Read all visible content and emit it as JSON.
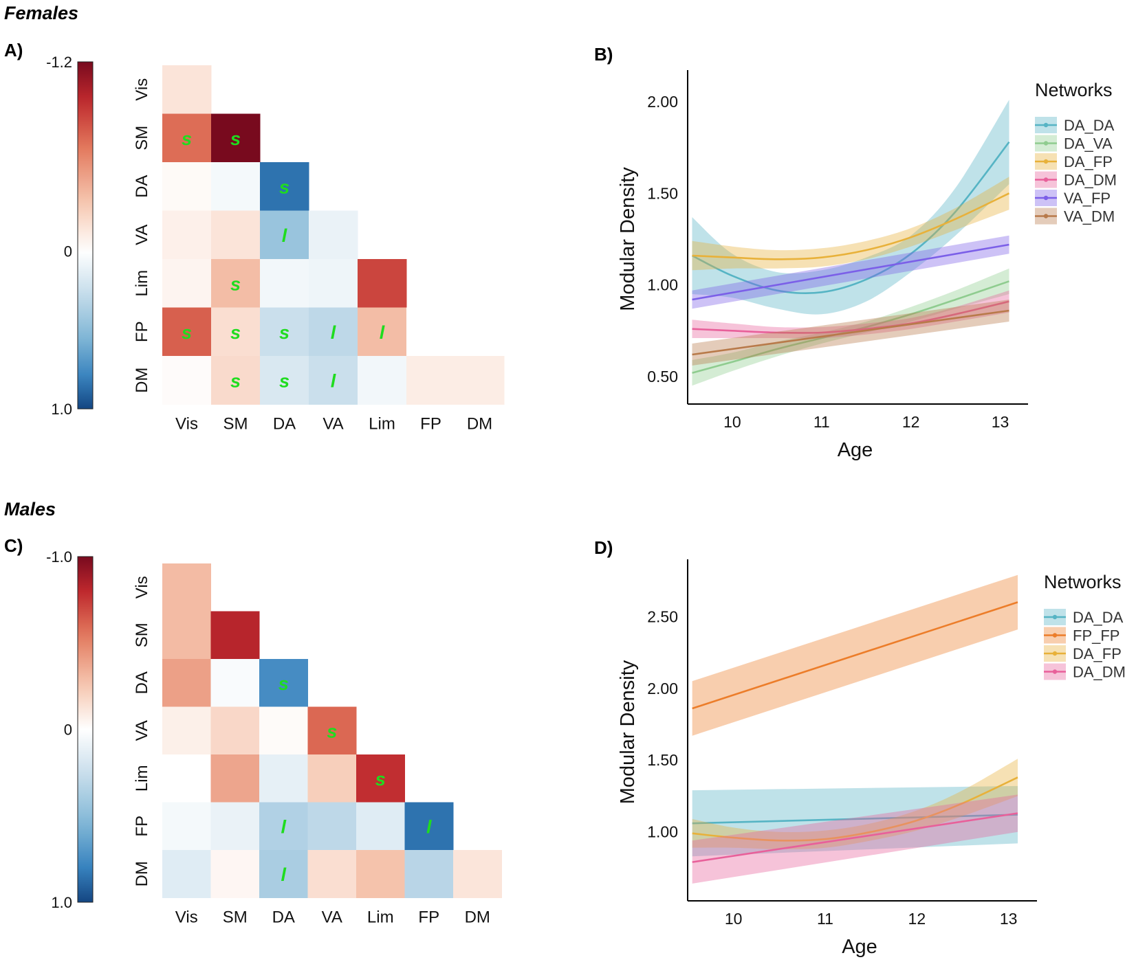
{
  "sections": {
    "females": "Females",
    "males": "Males"
  },
  "colors": {
    "DA_DA": "#56b4c4",
    "DA_VA": "#8fcc8f",
    "DA_FP": "#e8b13a",
    "DA_DM": "#e8609a",
    "VA_FP": "#7b5fe8",
    "VA_DM": "#b87a4a",
    "FP_FP": "#ec7d2a",
    "mark": "#1fdc1f"
  },
  "chart_data": [
    {
      "id": "A",
      "panel_label": "A)",
      "type": "heatmap",
      "rows": [
        "Vis",
        "SM",
        "DA",
        "VA",
        "Lim",
        "FP",
        "DM"
      ],
      "cols": [
        "Vis",
        "SM",
        "DA",
        "VA",
        "Lim",
        "FP",
        "DM"
      ],
      "colorbar": {
        "top_label": "-1.2",
        "mid_label": "0",
        "bottom_label": "1.0",
        "min": -1.2,
        "max": 1.0
      },
      "cells": [
        [
          -0.15
        ],
        [
          -0.7,
          -1.2
        ],
        [
          -0.03,
          0.05,
          0.85
        ],
        [
          -0.08,
          -0.15,
          0.45,
          0.1
        ],
        [
          -0.06,
          -0.35,
          0.06,
          0.08,
          -0.85
        ],
        [
          -0.75,
          -0.18,
          0.25,
          0.3,
          -0.35,
          0.0
        ],
        [
          -0.02,
          -0.2,
          0.18,
          0.25,
          0.06,
          -0.1,
          -0.1
        ]
      ],
      "marks": [
        [
          ""
        ],
        [
          "s",
          "s"
        ],
        [
          "",
          "",
          "s"
        ],
        [
          "",
          "",
          "l",
          ""
        ],
        [
          "",
          "s",
          "",
          "",
          ""
        ],
        [
          "s",
          "s",
          "s",
          "l",
          "l",
          "",
          ""
        ],
        [
          "",
          "s",
          "s",
          "l",
          "",
          "",
          ""
        ]
      ]
    },
    {
      "id": "B",
      "panel_label": "B)",
      "type": "line",
      "xlabel": "Age",
      "ylabel": "Modular Density",
      "xlim": [
        9.5,
        13.25
      ],
      "ylim": [
        0.35,
        2.15
      ],
      "xticks": [
        "10",
        "11",
        "12",
        "13"
      ],
      "yticks": [
        "0.50",
        "1.00",
        "1.50",
        "2.00"
      ],
      "legend_title": "Networks",
      "series": [
        {
          "name": "DA_DA",
          "x": [
            9.55,
            10,
            10.5,
            11,
            11.5,
            12,
            12.5,
            13.1
          ],
          "y": [
            1.16,
            1.05,
            0.97,
            0.96,
            1.03,
            1.17,
            1.4,
            1.78
          ],
          "band": [
            0.21,
            0.12,
            0.1,
            0.12,
            0.12,
            0.1,
            0.13,
            0.23
          ]
        },
        {
          "name": "DA_VA",
          "x": [
            9.55,
            10,
            10.5,
            11,
            11.5,
            12,
            12.5,
            13.1
          ],
          "y": [
            0.52,
            0.58,
            0.65,
            0.71,
            0.77,
            0.84,
            0.92,
            1.02
          ],
          "band": [
            0.07,
            0.05,
            0.04,
            0.03,
            0.03,
            0.04,
            0.05,
            0.07
          ]
        },
        {
          "name": "DA_FP",
          "x": [
            9.55,
            10,
            10.5,
            11,
            11.5,
            12,
            12.5,
            13.1
          ],
          "y": [
            1.16,
            1.15,
            1.14,
            1.15,
            1.19,
            1.26,
            1.36,
            1.5
          ],
          "band": [
            0.08,
            0.06,
            0.05,
            0.05,
            0.05,
            0.05,
            0.06,
            0.09
          ]
        },
        {
          "name": "DA_DM",
          "x": [
            9.55,
            10,
            10.5,
            11,
            11.5,
            12,
            12.5,
            13.1
          ],
          "y": [
            0.76,
            0.75,
            0.74,
            0.74,
            0.76,
            0.79,
            0.84,
            0.91
          ],
          "band": [
            0.05,
            0.04,
            0.03,
            0.03,
            0.03,
            0.03,
            0.04,
            0.06
          ]
        },
        {
          "name": "VA_FP",
          "x": [
            9.55,
            13.1
          ],
          "y": [
            0.92,
            1.22
          ],
          "band": [
            0.05,
            0.05
          ]
        },
        {
          "name": "VA_DM",
          "x": [
            9.55,
            13.1
          ],
          "y": [
            0.62,
            0.86
          ],
          "band": [
            0.06,
            0.06
          ]
        }
      ]
    },
    {
      "id": "C",
      "panel_label": "C)",
      "type": "heatmap",
      "rows": [
        "Vis",
        "SM",
        "DA",
        "VA",
        "Lim",
        "FP",
        "DM"
      ],
      "cols": [
        "Vis",
        "SM",
        "DA",
        "VA",
        "Lim",
        "FP",
        "DM"
      ],
      "colorbar": {
        "top_label": "-1.0",
        "mid_label": "0",
        "bottom_label": "1.0",
        "min": -1.0,
        "max": 1.0
      },
      "cells": [
        [
          -0.3
        ],
        [
          -0.3,
          -0.82
        ],
        [
          -0.4,
          0.03,
          0.75
        ],
        [
          -0.07,
          -0.18,
          -0.02,
          -0.6
        ],
        [
          0.0,
          -0.38,
          0.12,
          -0.22,
          -0.78
        ],
        [
          0.05,
          0.1,
          0.35,
          0.3,
          0.15,
          0.85
        ],
        [
          0.15,
          -0.04,
          0.38,
          -0.15,
          -0.27,
          0.32,
          -0.12
        ]
      ],
      "marks": [
        [
          ""
        ],
        [
          "",
          ""
        ],
        [
          "",
          "",
          "s"
        ],
        [
          "",
          "",
          "",
          "s"
        ],
        [
          "",
          "",
          "",
          "",
          "s"
        ],
        [
          "",
          "",
          "l",
          "",
          "",
          "l"
        ],
        [
          "",
          "",
          "l",
          "",
          "",
          "",
          ""
        ]
      ]
    },
    {
      "id": "D",
      "panel_label": "D)",
      "type": "line",
      "xlabel": "Age",
      "ylabel": "Modular Density",
      "xlim": [
        9.5,
        13.25
      ],
      "ylim": [
        0.52,
        2.87
      ],
      "xticks": [
        "10",
        "11",
        "12",
        "13"
      ],
      "yticks": [
        "1.00",
        "1.50",
        "2.00",
        "2.50"
      ],
      "legend_title": "Networks",
      "series": [
        {
          "name": "DA_DA",
          "x": [
            9.55,
            13.1
          ],
          "y": [
            1.06,
            1.12
          ],
          "band": [
            0.23,
            0.2
          ]
        },
        {
          "name": "FP_FP",
          "x": [
            9.55,
            13.1
          ],
          "y": [
            1.86,
            2.6
          ],
          "band": [
            0.19,
            0.19
          ]
        },
        {
          "name": "DA_FP",
          "x": [
            9.55,
            10,
            10.5,
            11,
            11.5,
            12,
            12.5,
            13.1
          ],
          "y": [
            0.99,
            0.96,
            0.94,
            0.95,
            1.0,
            1.08,
            1.2,
            1.38
          ],
          "band": [
            0.1,
            0.07,
            0.06,
            0.06,
            0.06,
            0.07,
            0.09,
            0.13
          ]
        },
        {
          "name": "DA_DM",
          "x": [
            9.55,
            13.1
          ],
          "y": [
            0.79,
            1.13
          ],
          "band": [
            0.15,
            0.13
          ]
        }
      ]
    }
  ]
}
